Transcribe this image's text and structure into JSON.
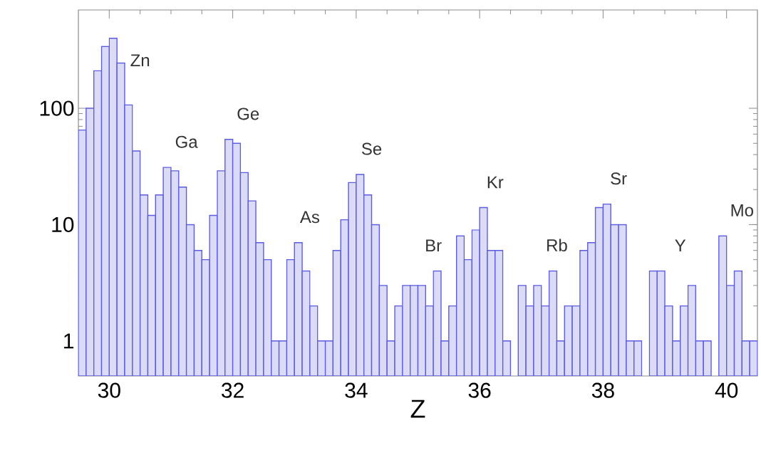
{
  "chart_data": {
    "type": "histogram",
    "xlabel": "Z",
    "color": "#5c5ce0",
    "bins": [
      29.5,
      29.625,
      29.75,
      29.875,
      30.0,
      30.125,
      30.25,
      30.375,
      30.5,
      30.625,
      30.75,
      30.875,
      31.0,
      31.125,
      31.25,
      31.375,
      31.5,
      31.625,
      31.75,
      31.875,
      32.0,
      32.125,
      32.25,
      32.375,
      32.5,
      32.625,
      32.75,
      32.875,
      33.0,
      33.125,
      33.25,
      33.375,
      33.5,
      33.625,
      33.75,
      33.875,
      34.0,
      34.125,
      34.25,
      34.375,
      34.5,
      34.625,
      34.75,
      34.875,
      35.0,
      35.125,
      35.25,
      35.375,
      35.5,
      35.625,
      35.75,
      35.875,
      36.0,
      36.125,
      36.25,
      36.375,
      36.5,
      36.625,
      36.75,
      36.875,
      37.0,
      37.125,
      37.25,
      37.375,
      37.5,
      37.625,
      37.75,
      37.875,
      38.0,
      38.125,
      38.25,
      38.375,
      38.5,
      38.625,
      38.75,
      38.875,
      39.0,
      39.125,
      39.25,
      39.375,
      39.5,
      39.625,
      39.75,
      39.875,
      40.0,
      40.125,
      40.25,
      40.375,
      40.5
    ],
    "values": [
      65,
      100,
      210,
      340,
      400,
      245,
      107,
      43,
      18,
      12,
      18,
      31,
      29,
      21,
      10,
      6,
      5,
      12,
      29,
      54,
      50,
      28,
      16,
      7,
      5,
      1,
      1,
      5,
      7,
      4,
      2,
      1,
      1,
      6,
      11,
      23,
      27,
      18,
      10,
      3,
      1,
      2,
      3,
      3,
      3,
      2,
      4,
      1,
      2,
      8,
      5,
      9,
      14,
      6,
      6,
      1,
      null,
      3,
      2,
      3,
      2,
      4,
      1,
      2,
      2,
      6,
      7,
      14,
      15,
      10,
      10,
      1,
      1,
      null,
      4,
      4,
      2,
      1,
      2,
      3,
      1,
      1,
      null,
      8,
      3,
      4,
      1,
      1
    ],
    "log": "y",
    "xlim": [
      29.5,
      40.5
    ],
    "ylim": [
      0.5,
      700
    ],
    "xticks": [
      30,
      32,
      34,
      36,
      38,
      40
    ],
    "yticks": [
      1,
      10,
      100
    ],
    "annotations": [
      "Zn",
      "Ga",
      "Ge",
      "As",
      "Se",
      "Br",
      "Kr",
      "Rb",
      "Sr",
      "Y",
      "Mo"
    ]
  }
}
